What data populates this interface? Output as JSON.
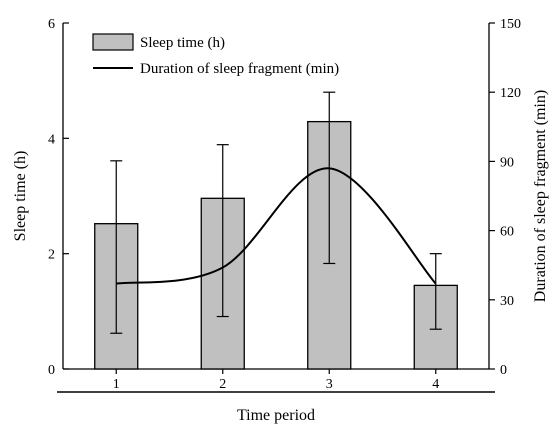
{
  "chart_data": {
    "type": "bar",
    "categories": [
      "1",
      "2",
      "3",
      "4"
    ],
    "xlabel": "Time period",
    "ylabel_left": "Sleep time (h)",
    "ylabel_right": "Duration of sleep fragment (min)",
    "ylim_left": [
      0,
      6
    ],
    "yticks_left": [
      "0",
      "2",
      "4",
      "6"
    ],
    "ylim_right": [
      0,
      150
    ],
    "yticks_right": [
      "0",
      "30",
      "60",
      "90",
      "120",
      "150"
    ],
    "legend_position": "top-left",
    "series": [
      {
        "name": "Sleep time (h)",
        "kind": "bar",
        "axis": "left",
        "values": [
          2.52,
          2.96,
          4.29,
          1.45
        ],
        "err_low": [
          0.62,
          0.91,
          1.83,
          0.69
        ],
        "err_high": [
          3.61,
          3.89,
          4.8,
          2.0
        ],
        "color": "#c0c0c0"
      },
      {
        "name": "Duration of sleep fragment (min)",
        "kind": "line",
        "axis": "right",
        "smooth": true,
        "values": [
          37,
          44,
          87,
          37
        ],
        "color": "#000000"
      }
    ],
    "grid": false
  }
}
